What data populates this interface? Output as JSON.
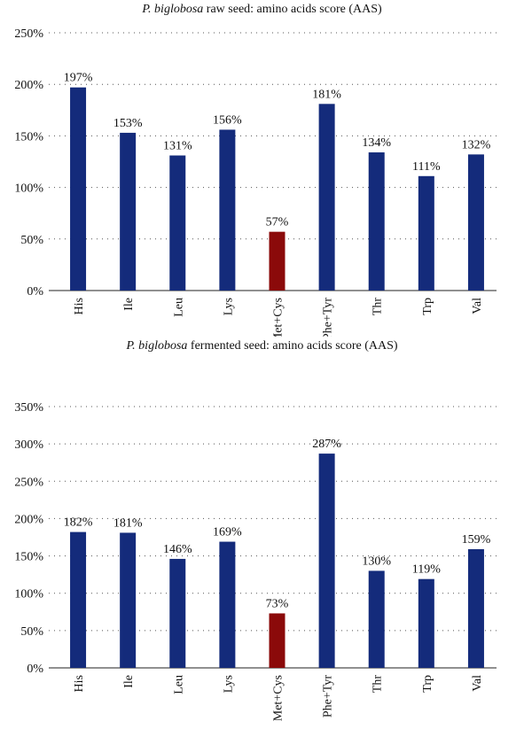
{
  "chart_data": [
    {
      "type": "bar",
      "title_italic": "P. biglobosa",
      "title_rest": " raw seed: amino acids score (AAS)",
      "categories": [
        "His",
        "Ile",
        "Leu",
        "Lys",
        "Met+Cys",
        "Phe+Tyr",
        "Thr",
        "Trp",
        "Val"
      ],
      "values": [
        197,
        153,
        131,
        156,
        57,
        181,
        134,
        111,
        132
      ],
      "value_labels": [
        "197%",
        "153%",
        "131%",
        "156%",
        "57%",
        "181%",
        "134%",
        "111%",
        "132%"
      ],
      "ylim": [
        0,
        250
      ],
      "yticks": [
        0,
        50,
        100,
        150,
        200,
        250
      ],
      "ytick_labels": [
        "0%",
        "50%",
        "100%",
        "150%",
        "200%",
        "250%"
      ],
      "grid": true,
      "colors": {
        "default": "#142b7b",
        "highlight": "#8b0a0a"
      },
      "highlight_category": "Met+Cys"
    },
    {
      "type": "bar",
      "title_italic": "P. biglobosa",
      "title_rest": " fermented seed: amino acids score (AAS)",
      "categories": [
        "His",
        "Ile",
        "Leu",
        "Lys",
        "Met+Cys",
        "Phe+Tyr",
        "Thr",
        "Trp",
        "Val"
      ],
      "values": [
        182,
        181,
        146,
        169,
        73,
        287,
        130,
        119,
        159
      ],
      "value_labels": [
        "182%",
        "181%",
        "146%",
        "169%",
        "73%",
        "287%",
        "130%",
        "119%",
        "159%"
      ],
      "ylim": [
        0,
        350
      ],
      "yticks": [
        0,
        50,
        100,
        150,
        200,
        250,
        300,
        350
      ],
      "ytick_labels": [
        "0%",
        "50%",
        "100%",
        "150%",
        "200%",
        "250%",
        "300%",
        "350%"
      ],
      "grid": true,
      "colors": {
        "default": "#142b7b",
        "highlight": "#8b0a0a"
      },
      "highlight_category": "Met+Cys"
    }
  ]
}
